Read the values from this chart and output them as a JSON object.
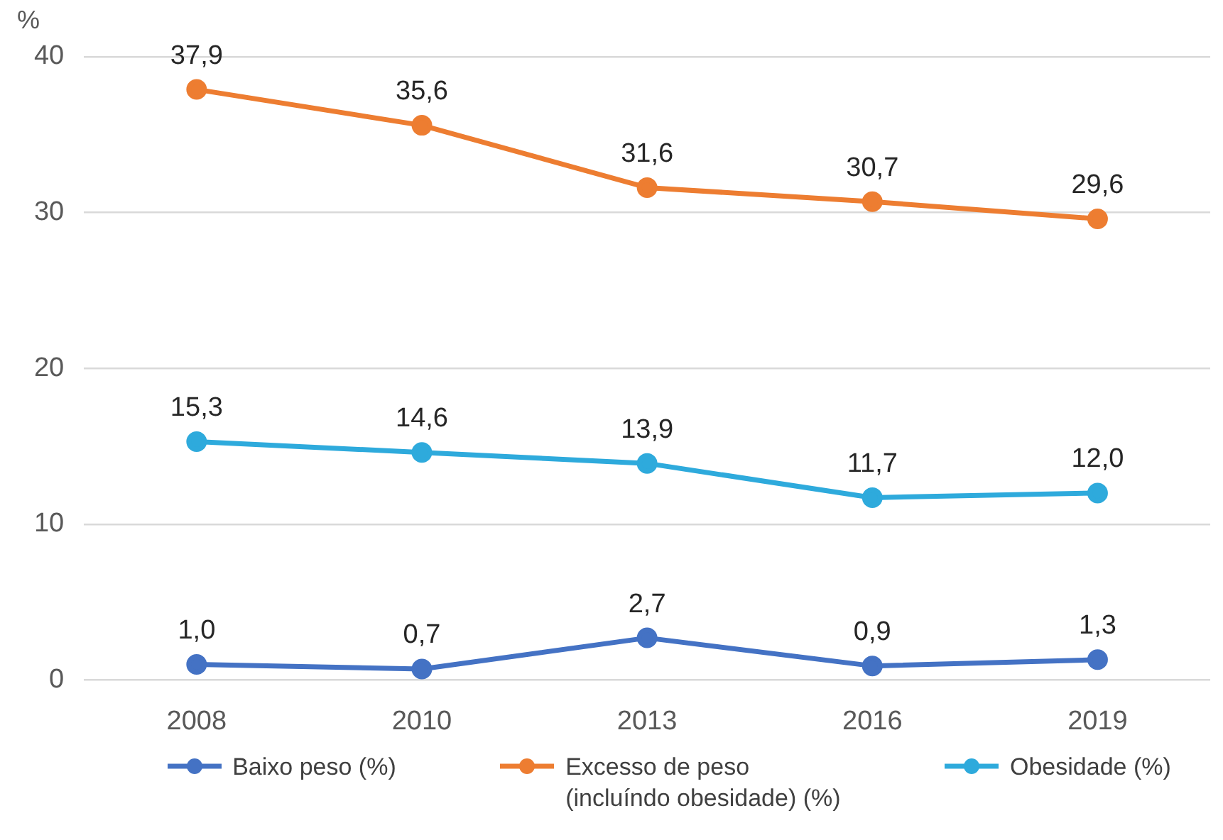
{
  "chart_data": {
    "type": "line",
    "ylabel": "%",
    "categories": [
      "2008",
      "2010",
      "2013",
      "2016",
      "2019"
    ],
    "series": [
      {
        "name": "Baixo peso (%)",
        "color": "#4472c4",
        "values": [
          1.0,
          0.7,
          2.7,
          0.9,
          1.3
        ],
        "value_labels": [
          "1,0",
          "0,7",
          "2,7",
          "0,9",
          "1,3"
        ]
      },
      {
        "name": "Excesso de peso\n(incluíndo obesidade) (%)",
        "color": "#ed7d31",
        "values": [
          37.9,
          35.6,
          31.6,
          30.7,
          29.6
        ],
        "value_labels": [
          "37,9",
          "35,6",
          "31,6",
          "30,7",
          "29,6"
        ]
      },
      {
        "name": "Obesidade (%)",
        "color": "#2eaadc",
        "values": [
          15.3,
          14.6,
          13.9,
          11.7,
          12.0
        ],
        "value_labels": [
          "15,3",
          "14,6",
          "13,9",
          "11,7",
          "12,0"
        ]
      }
    ],
    "ylim": [
      0,
      40
    ],
    "yticks": [
      0,
      10,
      20,
      30,
      40
    ],
    "grid": "y",
    "legend": "bottom",
    "marker": "circle",
    "line_style": "solid"
  }
}
